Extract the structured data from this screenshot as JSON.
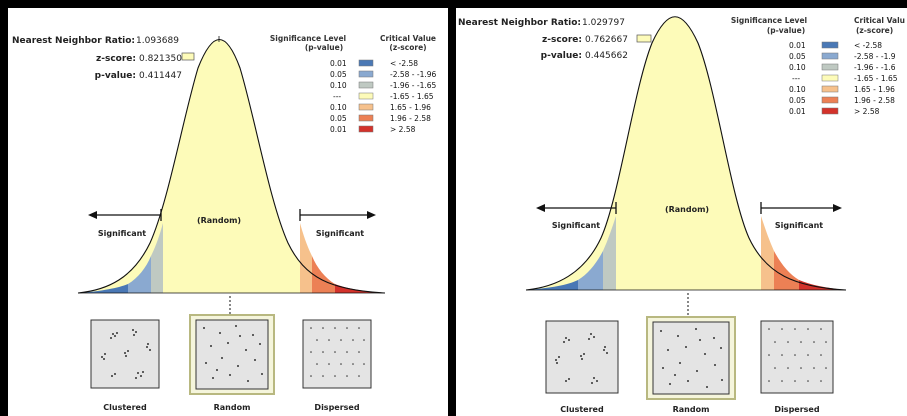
{
  "panels": [
    {
      "nn_ratio_label": "Nearest Neighbor Ratio:",
      "nn_ratio_value": "1.093689",
      "z_label": "z-score:",
      "z_value": "0.821350",
      "p_label": "p-value:",
      "p_value": "0.411447",
      "sig_header": [
        "Significance Level",
        "(p-value)"
      ],
      "crit_header": [
        "Critical Value",
        "(z-score)"
      ],
      "legend": [
        {
          "p": "0.01",
          "z": "< -2.58",
          "color": "#4a78b5"
        },
        {
          "p": "0.05",
          "z": "-2.58 - -1.96",
          "color": "#8aa9d0"
        },
        {
          "p": "0.10",
          "z": "-1.96 - -1.65",
          "color": "#bfc9c2"
        },
        {
          "p": "---",
          "z": "-1.65 - 1.65",
          "color": "#fdfbb9"
        },
        {
          "p": "0.10",
          "z": "1.65 - 1.96",
          "color": "#f6c18c"
        },
        {
          "p": "0.05",
          "z": "1.96 - 2.58",
          "color": "#ec8055"
        },
        {
          "p": "0.01",
          "z": "> 2.58",
          "color": "#d3322b"
        }
      ],
      "center_label": "(Random)",
      "left_label": "Significant",
      "right_label": "Significant",
      "patterns": [
        "Clustered",
        "Random",
        "Dispersed"
      ]
    },
    {
      "nn_ratio_label": "Nearest Neighbor Ratio:",
      "nn_ratio_value": "1.029797",
      "z_label": "z-score:",
      "z_value": "0.762667",
      "p_label": "p-value:",
      "p_value": "0.445662",
      "sig_header": [
        "Significance Level",
        "(p-value)"
      ],
      "crit_header": [
        "Critical Valu",
        "(z-score)"
      ],
      "legend": [
        {
          "p": "0.01",
          "z": "< -2.58",
          "color": "#4a78b5"
        },
        {
          "p": "0.05",
          "z": "-2.58 - -1.9",
          "color": "#8aa9d0"
        },
        {
          "p": "0.10",
          "z": "-1.96 - -1.6",
          "color": "#bfc9c2"
        },
        {
          "p": "---",
          "z": "-1.65 - 1.65",
          "color": "#fdfbb9"
        },
        {
          "p": "0.10",
          "z": "1.65 - 1.96",
          "color": "#f6c18c"
        },
        {
          "p": "0.05",
          "z": "1.96 - 2.58",
          "color": "#ec8055"
        },
        {
          "p": "0.01",
          "z": "> 2.58",
          "color": "#d3322b"
        }
      ],
      "center_label": "(Random)",
      "left_label": "Significant",
      "right_label": "Significant",
      "patterns": [
        "Clustered",
        "Random",
        "Dispersed"
      ]
    }
  ]
}
